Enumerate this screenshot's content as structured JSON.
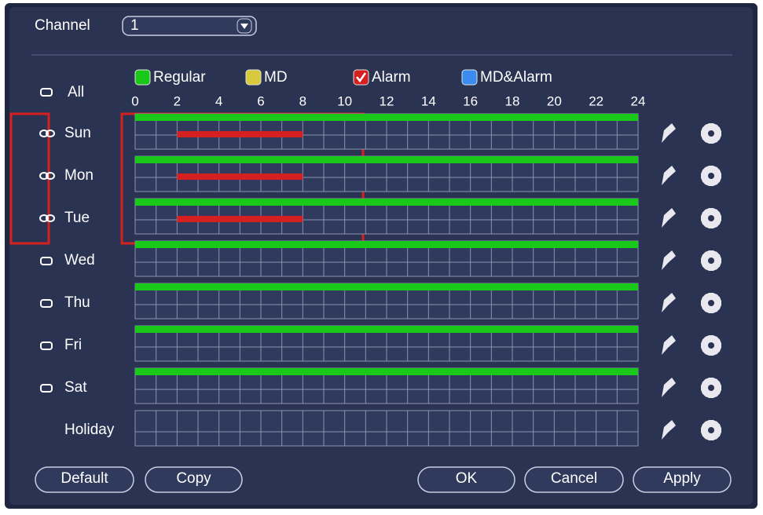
{
  "channel": {
    "label": "Channel",
    "value": "1"
  },
  "all_label": "All",
  "legend": [
    {
      "label": "Regular",
      "color": "#19c819"
    },
    {
      "label": "MD",
      "color": "#d8c93a"
    },
    {
      "label": "Alarm",
      "color": "#d42020"
    },
    {
      "label": "MD&Alarm",
      "color": "#3a8cf0"
    }
  ],
  "hours": [
    0,
    2,
    4,
    6,
    8,
    10,
    12,
    14,
    16,
    18,
    20,
    22,
    24
  ],
  "days": [
    {
      "label": "Sun",
      "icon": "link",
      "segments": [
        {
          "color": "#19c819",
          "start": 0,
          "end": 24
        },
        {
          "color": "#d42020",
          "start": 2,
          "end": 8
        }
      ]
    },
    {
      "label": "Mon",
      "icon": "link",
      "segments": [
        {
          "color": "#19c819",
          "start": 0,
          "end": 24
        },
        {
          "color": "#d42020",
          "start": 2,
          "end": 8
        }
      ]
    },
    {
      "label": "Tue",
      "icon": "link",
      "segments": [
        {
          "color": "#19c819",
          "start": 0,
          "end": 24
        },
        {
          "color": "#d42020",
          "start": 2,
          "end": 8
        }
      ]
    },
    {
      "label": "Wed",
      "icon": "square",
      "segments": [
        {
          "color": "#19c819",
          "start": 0,
          "end": 24
        }
      ]
    },
    {
      "label": "Thu",
      "icon": "square",
      "segments": [
        {
          "color": "#19c819",
          "start": 0,
          "end": 24
        }
      ]
    },
    {
      "label": "Fri",
      "icon": "square",
      "segments": [
        {
          "color": "#19c819",
          "start": 0,
          "end": 24
        }
      ]
    },
    {
      "label": "Sat",
      "icon": "square",
      "segments": [
        {
          "color": "#19c819",
          "start": 0,
          "end": 24
        }
      ]
    },
    {
      "label": "Holiday",
      "segments": []
    }
  ],
  "buttons": [
    "Default",
    "Copy",
    "OK",
    "Cancel",
    "Apply"
  ]
}
